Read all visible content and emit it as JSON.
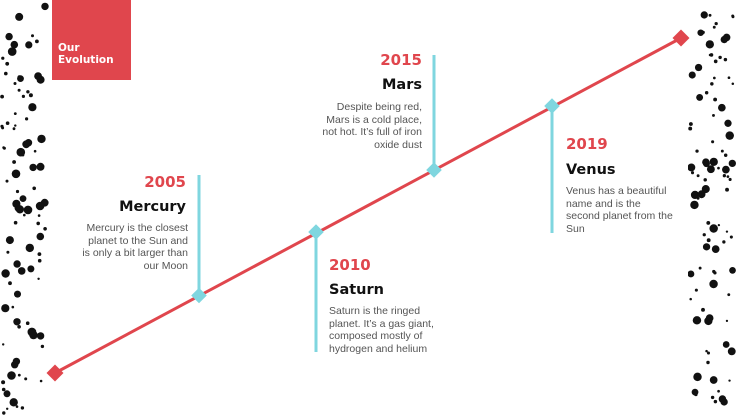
{
  "slide": {
    "title": "Our Evolution",
    "colors": {
      "accent": "#e0464d",
      "connector": "#7fd6df",
      "text": "#555555",
      "heading": "#111111"
    },
    "events": [
      {
        "year": "2005",
        "planet": "Mercury",
        "description": "Mercury is the closest planet to the Sun and is only a bit larger than our Moon"
      },
      {
        "year": "2010",
        "planet": "Saturn",
        "description": "Saturn is the ringed planet. It’s a gas giant, composed mostly of hydrogen and helium"
      },
      {
        "year": "2015",
        "planet": "Mars",
        "description": "Despite being red, Mars is a cold place, not hot. It’s full of iron oxide dust"
      },
      {
        "year": "2019",
        "planet": "Venus",
        "description": "Venus has a beautiful name and is the second planet from the Sun"
      }
    ]
  }
}
